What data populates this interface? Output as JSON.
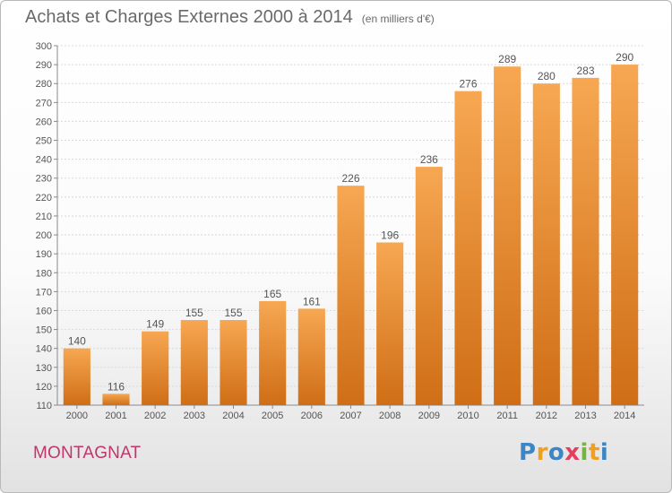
{
  "header": {
    "title": "Achats et Charges Externes 2000 à 2014",
    "subtitle": "(en milliers d'€)"
  },
  "location": "MONTAGNAT",
  "logo": {
    "text": "Proxiti"
  },
  "colors": {
    "bar_top": "#f7a752",
    "bar_bottom": "#cf6e16",
    "grid": "#d9d9d9",
    "axis": "#8a8a8a",
    "text": "#555555"
  },
  "chart_data": {
    "type": "bar",
    "title": "Achats et Charges Externes 2000 à 2014",
    "subtitle": "(en milliers d'€)",
    "categories": [
      "2000",
      "2001",
      "2002",
      "2003",
      "2004",
      "2005",
      "2006",
      "2007",
      "2008",
      "2009",
      "2010",
      "2011",
      "2012",
      "2013",
      "2014"
    ],
    "values": [
      140,
      116,
      149,
      155,
      155,
      165,
      161,
      226,
      196,
      236,
      276,
      289,
      280,
      283,
      290
    ],
    "ylim": [
      110,
      300
    ],
    "ytick_step": 10,
    "grid": true,
    "data_labels": true
  }
}
